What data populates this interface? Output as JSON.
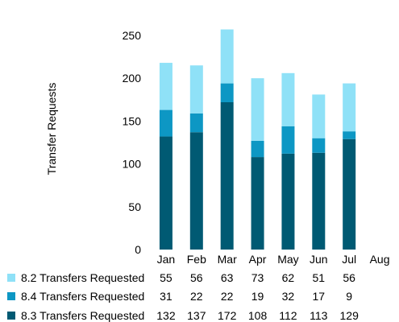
{
  "chart_data": {
    "type": "bar",
    "stacked": true,
    "ylabel": "Transfer Requests",
    "xlabel": "",
    "ylim": [
      0,
      250
    ],
    "yticks": [
      0,
      50,
      100,
      150,
      200,
      250
    ],
    "grid": false,
    "legend": "data-table-below",
    "categories": [
      "Jan",
      "Feb",
      "Mar",
      "Apr",
      "May",
      "Jun",
      "Jul",
      "Aug"
    ],
    "series": [
      {
        "name": "8.3 Transfers Requested",
        "color": "#005a73",
        "values": [
          132,
          137,
          172,
          108,
          112,
          113,
          129,
          null
        ]
      },
      {
        "name": "8.4 Transfers Requested",
        "color": "#0d97c4",
        "values": [
          31,
          22,
          22,
          19,
          32,
          17,
          9,
          null
        ]
      },
      {
        "name": "8.2 Transfers Requested",
        "color": "#8fe1f7",
        "values": [
          55,
          56,
          63,
          73,
          62,
          51,
          56,
          null
        ]
      }
    ],
    "table_order": [
      "8.2 Transfers Requested",
      "8.4 Transfers Requested",
      "8.3 Transfers Requested"
    ]
  }
}
